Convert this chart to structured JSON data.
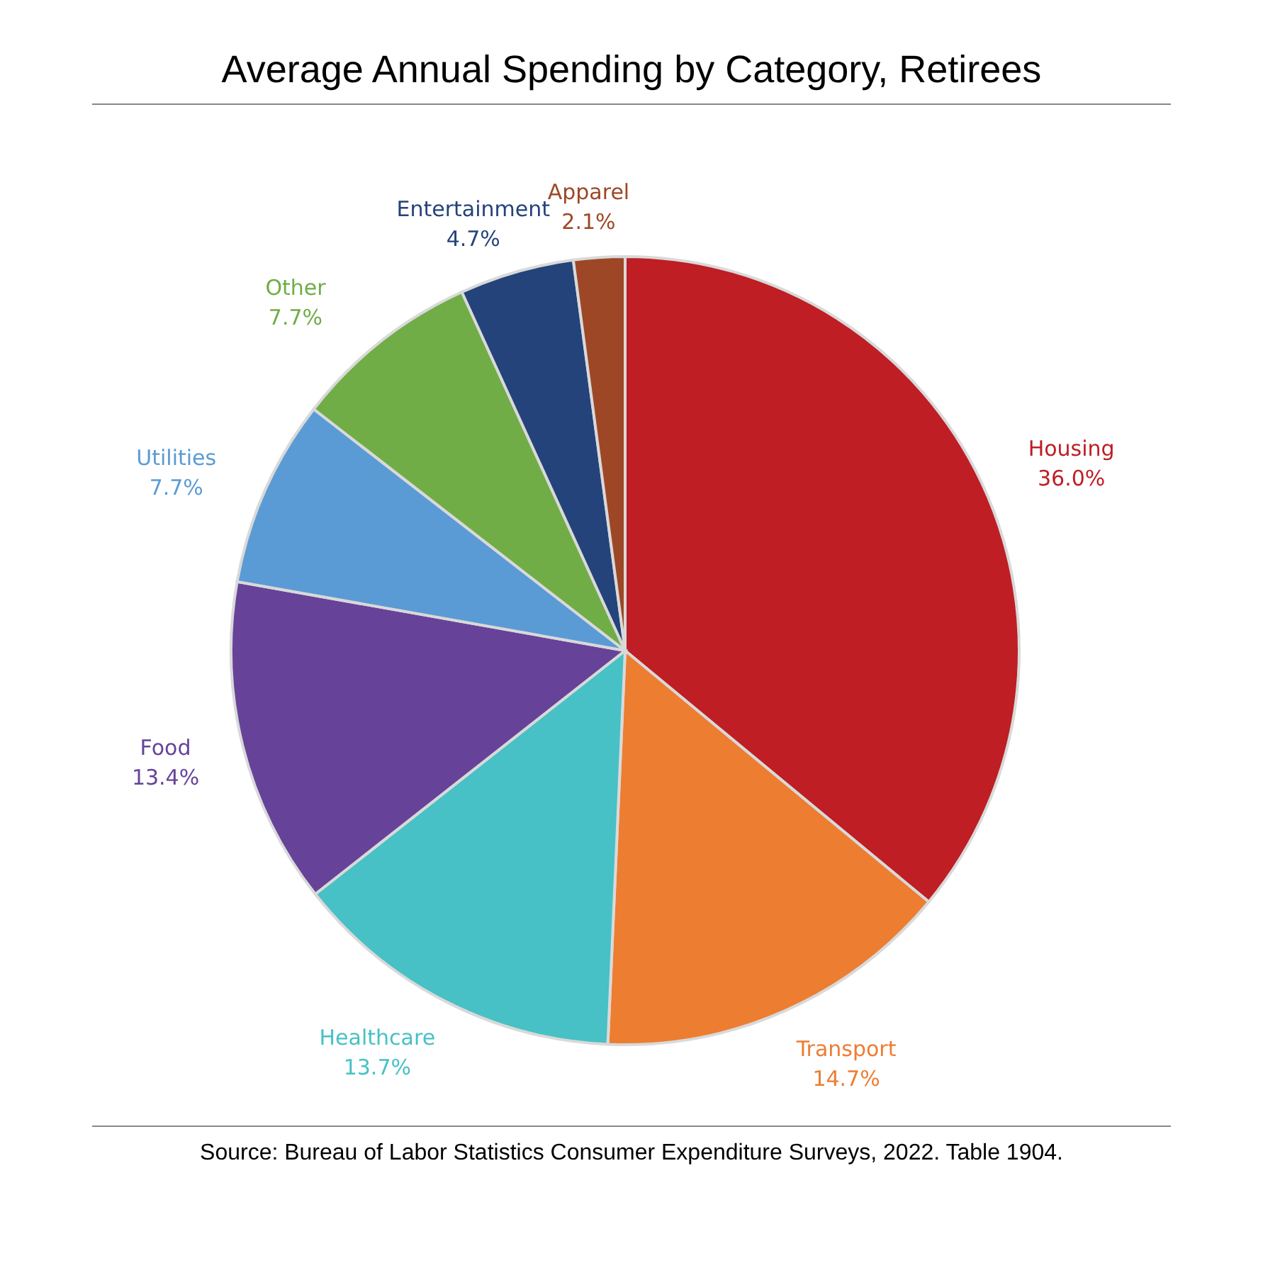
{
  "chart_data": {
    "type": "pie",
    "title": "Average Annual Spending by Category, Retirees",
    "categories": [
      "Housing",
      "Transport",
      "Healthcare",
      "Food",
      "Utilities",
      "Other",
      "Entertainment",
      "Apparel"
    ],
    "values": [
      36.0,
      14.7,
      13.7,
      13.4,
      7.7,
      7.7,
      4.7,
      2.1
    ],
    "value_labels": [
      "36.0%",
      "14.7%",
      "13.7%",
      "13.4%",
      "7.7%",
      "7.7%",
      "4.7%",
      "2.1%"
    ],
    "colors": [
      "#be1e24",
      "#ed7d31",
      "#47c1c5",
      "#664399",
      "#5b9bd5",
      "#70ad47",
      "#24437a",
      "#9e4726"
    ],
    "annotations": [
      "Source: Bureau of Labor Statistics Consumer Expenditure Surveys, 2022. Table 1904."
    ]
  }
}
